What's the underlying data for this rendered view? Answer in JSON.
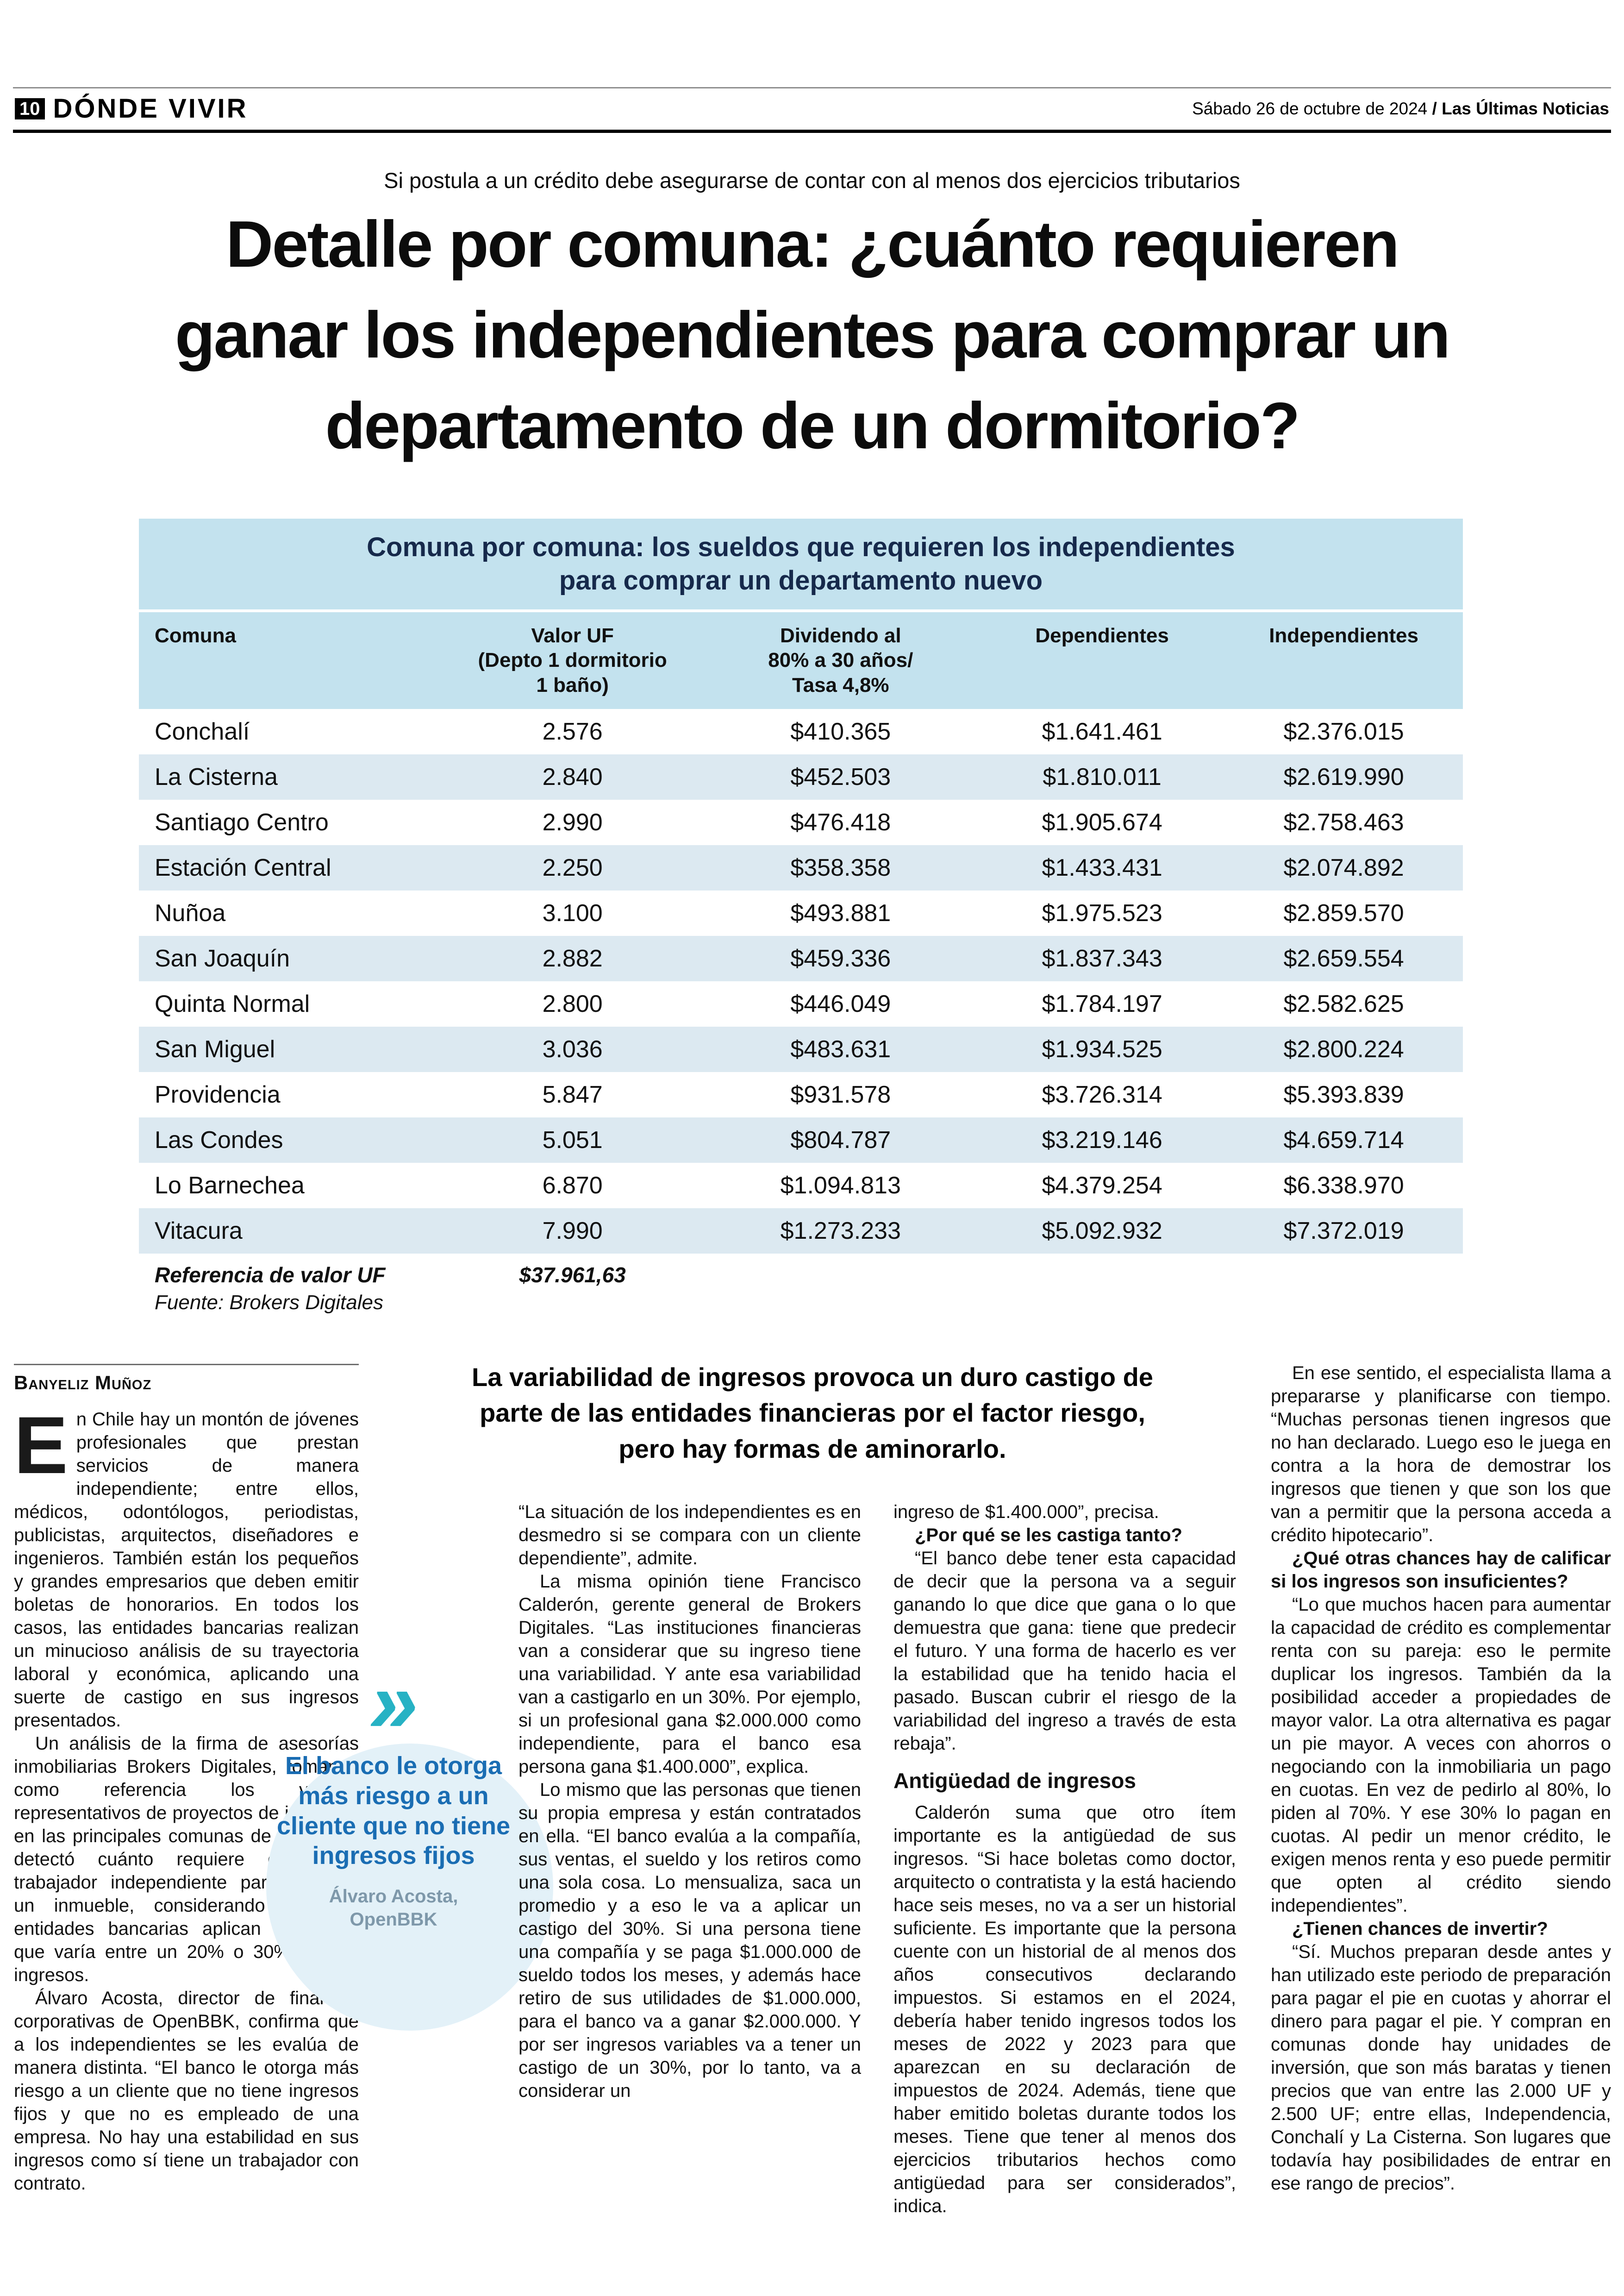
{
  "masthead": {
    "page_number": "10",
    "section": "DÓNDE VIVIR",
    "date": "Sábado 26 de octubre de 2024 ",
    "paper": "/ Las Últimas Noticias"
  },
  "kicker": "Si postula a un crédito debe asegurarse de contar con al menos dos ejercicios tributarios",
  "headline": "Detalle por comuna: ¿cuánto requieren\nganar los independientes para comprar un\ndepartamento de un dormitorio?",
  "table": {
    "title": "Comuna por comuna: los sueldos que requieren los independientes\npara comprar un departamento nuevo",
    "columns": {
      "comuna": "Comuna",
      "uf": "Valor UF\n(Depto 1 dormitorio\n1 baño)",
      "dividendo": "Dividendo al\n80% a 30 años/\nTasa 4,8%",
      "dependientes": "Dependientes",
      "independientes": "Independientes"
    },
    "rows": [
      {
        "comuna": "Conchalí",
        "uf": "2.576",
        "dividendo": "$410.365",
        "dependientes": "$1.641.461",
        "independientes": "$2.376.015"
      },
      {
        "comuna": "La Cisterna",
        "uf": "2.840",
        "dividendo": "$452.503",
        "dependientes": "$1.810.011",
        "independientes": "$2.619.990"
      },
      {
        "comuna": "Santiago Centro",
        "uf": "2.990",
        "dividendo": "$476.418",
        "dependientes": "$1.905.674",
        "independientes": "$2.758.463"
      },
      {
        "comuna": "Estación Central",
        "uf": "2.250",
        "dividendo": "$358.358",
        "dependientes": "$1.433.431",
        "independientes": "$2.074.892"
      },
      {
        "comuna": "Nuñoa",
        "uf": "3.100",
        "dividendo": "$493.881",
        "dependientes": "$1.975.523",
        "independientes": "$2.859.570"
      },
      {
        "comuna": "San Joaquín",
        "uf": "2.882",
        "dividendo": "$459.336",
        "dependientes": "$1.837.343",
        "independientes": "$2.659.554"
      },
      {
        "comuna": "Quinta Normal",
        "uf": "2.800",
        "dividendo": "$446.049",
        "dependientes": "$1.784.197",
        "independientes": "$2.582.625"
      },
      {
        "comuna": "San Miguel",
        "uf": "3.036",
        "dividendo": "$483.631",
        "dependientes": "$1.934.525",
        "independientes": "$2.800.224"
      },
      {
        "comuna": "Providencia",
        "uf": "5.847",
        "dividendo": "$931.578",
        "dependientes": "$3.726.314",
        "independientes": "$5.393.839"
      },
      {
        "comuna": "Las Condes",
        "uf": "5.051",
        "dividendo": "$804.787",
        "dependientes": "$3.219.146",
        "independientes": "$4.659.714"
      },
      {
        "comuna": "Lo Barnechea",
        "uf": "6.870",
        "dividendo": "$1.094.813",
        "dependientes": "$4.379.254",
        "independientes": "$6.338.970"
      },
      {
        "comuna": "Vitacura",
        "uf": "7.990",
        "dividendo": "$1.273.233",
        "dependientes": "$5.092.932",
        "independientes": "$7.372.019"
      }
    ],
    "footer": {
      "ref_label": "Referencia de valor UF",
      "ref_value": "$37.961,63",
      "source": "Fuente: Brokers Digitales"
    }
  },
  "article": {
    "byline": "Banyeliz Muñoz",
    "deck": "La variabilidad de ingresos provoca un duro castigo de\nparte de las entidades financieras por el factor riesgo,\npero hay formas de aminorarlo.",
    "col1": {
      "p1": "En Chile hay un montón de jóvenes profesionales que prestan servicios de manera independiente; entre ellos, médicos, odontólogos, periodistas, publicistas, arquitectos, diseñadores e ingenieros. También están los pequeños y grandes empresarios que deben emitir boletas de honorarios. En todos los casos, las entidades bancarias realizan un minucioso análisis de su trayectoria laboral y económica, aplicando una suerte de castigo en sus ingresos presentados.",
      "p2": "Un análisis de la firma de asesorías inmobiliarias Brokers Digitales, tomando como referencia los valores representativos de proyectos de inversión en las principales comunas de la capital, detectó cuánto requiere ganar un trabajador independiente para comprar un inmueble, considerando que las entidades bancarias aplican un ajuste que varía entre un 20% o 30% de sus ingresos.",
      "p3": "Álvaro Acosta, director de finanzas corporativas de OpenBBK, confirma que a los independientes se les evalúa de manera distinta. “El banco le otorga más riesgo a un cliente que no tiene ingresos fijos y que no es empleado de una empresa. No hay una estabilidad en sus ingresos como sí tiene un trabajador con contrato."
    },
    "colA": {
      "p1": "“La situación de los independientes es en desmedro si se compara con un cliente dependiente”, admite.",
      "p2": "La misma opinión tiene Francisco Calderón, gerente general de Brokers Digitales. “Las instituciones financieras van a considerar que su ingreso tiene una variabilidad. Y ante esa variabilidad van a castigarlo en un 30%. Por ejemplo, si un profesional gana $2.000.000 como independiente, para el banco esa persona gana $1.400.000”, explica.",
      "p3": "Lo mismo que las personas que tienen su propia empresa y están contratados en ella. “El banco evalúa a la compañía, sus ventas, el sueldo y los retiros como una sola cosa. Lo mensualiza, saca un promedio y a eso le va a aplicar un castigo del 30%. Si una persona tiene una compañía y se paga $1.000.000 de sueldo todos los meses, y además hace retiro de sus utilidades de $1.000.000, para el banco va a ganar $2.000.000. Y por ser ingresos variables va a tener un castigo de un 30%, por lo tanto, va a considerar un"
    },
    "colB": {
      "p1": "ingreso de $1.400.000”, precisa.",
      "q1": "¿Por qué se les castiga tanto?",
      "p2": "“El banco debe tener esta capacidad de decir que la persona va a seguir ganando lo que dice que gana o lo que demuestra que gana: tiene que predecir el futuro. Y una forma de hacerlo es ver la estabilidad que ha tenido hacia el pasado. Buscan cubrir el riesgo de la variabilidad del ingreso a través de esta rebaja”.",
      "subhead": "Antigüedad de ingresos",
      "p3": "Calderón suma que otro ítem importante es la antigüedad de sus ingresos. “Si hace boletas como doctor, arquitecto o contratista y la está haciendo hace seis meses, no va a ser un historial suficiente. Es importante que la persona cuente con un historial de al menos dos años consecutivos declarando impuestos. Si estamos en el 2024, debería haber tenido ingresos todos los meses de 2022 y 2023 para que aparezcan en su declaración de impuestos de 2024. Además, tiene que haber emitido boletas durante todos los meses. Tiene que tener al menos dos ejercicios tributarios hechos como antigüedad para ser considerados”, indica."
    },
    "colR": {
      "p1": "En ese sentido, el especialista llama a prepararse y planificarse con tiempo. “Muchas personas tienen ingresos que no han declarado. Luego eso le juega en contra a la hora de demostrar los ingresos que tienen y que son los que van a permitir que la persona acceda a crédito hipotecario”.",
      "q1": "¿Qué otras chances hay de calificar si los ingresos son insuficientes?",
      "p2": "“Lo que muchos hacen para aumentar la capacidad de crédito es complementar renta con su pareja: eso le permite duplicar los ingresos. También da la posibilidad acceder a propiedades de mayor valor. La otra alternativa es pagar un pie mayor. A veces con ahorros o negociando con la inmobiliaria un pago en cuotas. En vez de pedirlo al 80%, lo piden al 70%. Y ese 30% lo pagan en cuotas. Al pedir un menor crédito, le exigen menos renta y eso puede permitir que opten al crédito siendo independientes”.",
      "q2": "¿Tienen chances de invertir?",
      "p3": "“Sí. Muchos preparan desde antes y han utilizado este periodo de preparación para pagar el pie en cuotas y ahorrar el dinero para pagar el pie. Y compran en comunas donde hay unidades de inversión, que son más baratas y tienen precios que van entre las 2.000 UF y 2.500 UF; entre ellas, Independencia, Conchalí y La Cisterna. Son lugares que todavía hay posibilidades de entrar en ese rango de precios”."
    }
  },
  "pullquote": {
    "chevron": "»",
    "quote": "El banco le otorga más riesgo a un cliente que no tiene ingresos fijos",
    "attribution": "Álvaro Acosta,\nOpenBBK"
  },
  "colors": {
    "table_band": "#c3e2ee",
    "row_alt": "#dce9f1",
    "title_navy": "#16294b",
    "quote_blue": "#1a6db3",
    "chevron_teal": "#27b2c4",
    "attribution_gray": "#7e98aa",
    "circle_bg": "#e3f1f8"
  }
}
